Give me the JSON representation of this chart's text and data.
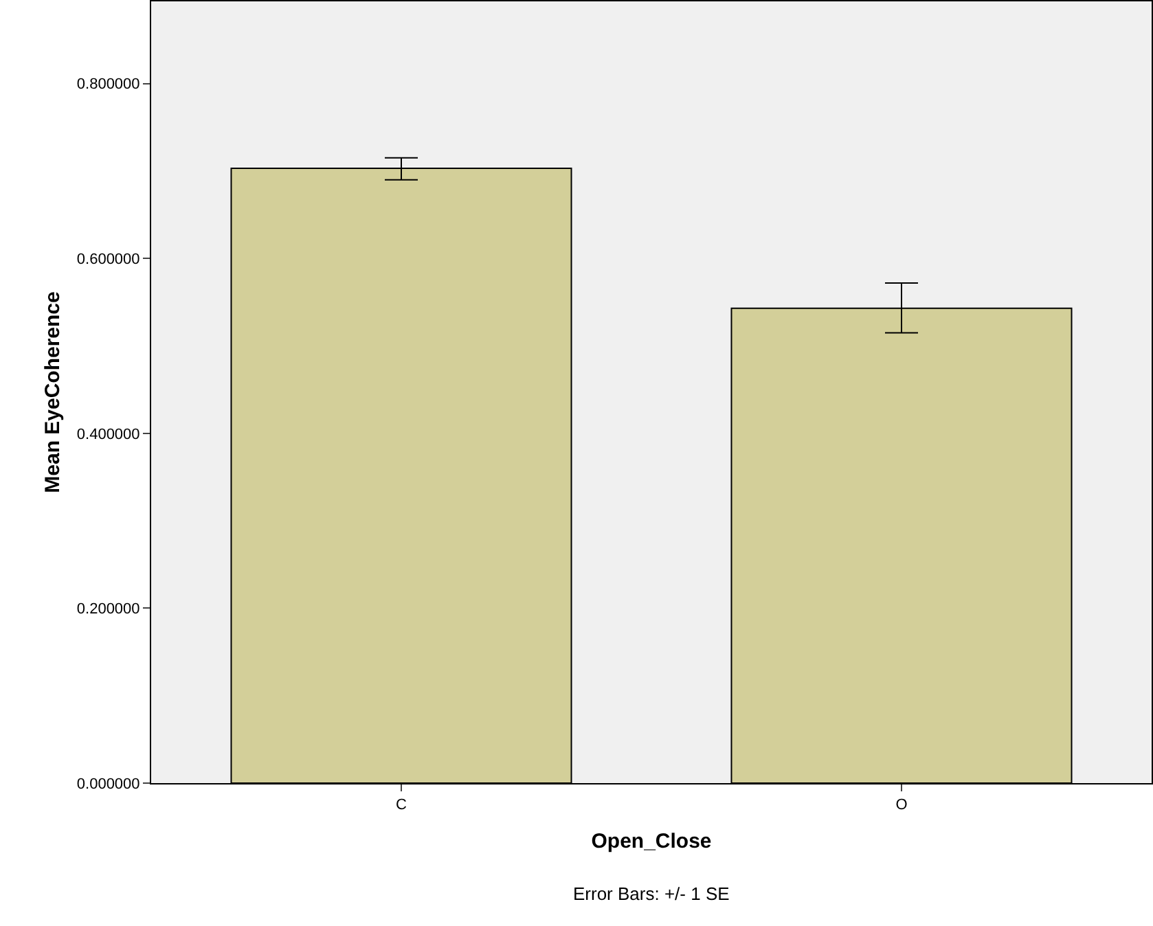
{
  "chart_data": {
    "type": "bar",
    "xlabel": "Open_Close",
    "ylabel": "Mean EyeCoherence",
    "categories": [
      "C",
      "O"
    ],
    "values": [
      0.703,
      0.543
    ],
    "errors": [
      [
        0.69,
        0.715
      ],
      [
        0.515,
        0.572
      ]
    ],
    "color": "#d3cf99",
    "ylim": [
      0,
      0.894
    ],
    "yticks": [
      {
        "value": 0,
        "label": "0.000000"
      },
      {
        "value": 0.2,
        "label": "0.200000"
      },
      {
        "value": 0.4,
        "label": "0.400000"
      },
      {
        "value": 0.6,
        "label": "0.600000"
      },
      {
        "value": 0.8,
        "label": "0.800000"
      }
    ],
    "grid": false,
    "legend": false,
    "annotations": [
      "Error Bars: +/- 1 SE"
    ]
  }
}
